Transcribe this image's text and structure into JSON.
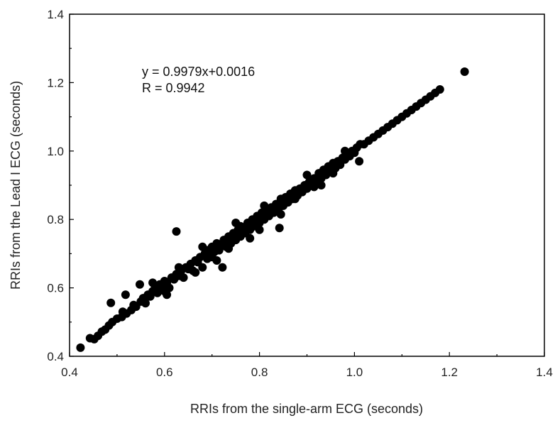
{
  "chart_data": {
    "type": "scatter",
    "title": "",
    "xlabel": "RRIs from the single-arm ECG (seconds)",
    "ylabel": "RRIs from the Lead I ECG (seconds)",
    "xlim": [
      0.4,
      1.4
    ],
    "ylim": [
      0.4,
      1.4
    ],
    "xticks": [
      "0.4",
      "0.6",
      "0.8",
      "1.0",
      "1.2",
      "1.4"
    ],
    "yticks": [
      "0.4",
      "0.6",
      "0.8",
      "1.0",
      "1.2",
      "1.4"
    ],
    "grid": false,
    "annotations": [
      "y = 0.9979x+0.0016",
      "R = 0.9942"
    ],
    "regression": {
      "slope": 0.9979,
      "intercept": 0.0016,
      "r": 0.9942
    },
    "marker_color": "#000000",
    "series": [
      {
        "points": [
          [
            0.423,
            0.425
          ],
          [
            0.443,
            0.453
          ],
          [
            0.452,
            0.45
          ],
          [
            0.46,
            0.46
          ],
          [
            0.468,
            0.472
          ],
          [
            0.475,
            0.478
          ],
          [
            0.483,
            0.49
          ],
          [
            0.49,
            0.5
          ],
          [
            0.487,
            0.556
          ],
          [
            0.5,
            0.51
          ],
          [
            0.51,
            0.515
          ],
          [
            0.512,
            0.53
          ],
          [
            0.52,
            0.525
          ],
          [
            0.518,
            0.58
          ],
          [
            0.53,
            0.535
          ],
          [
            0.535,
            0.55
          ],
          [
            0.54,
            0.545
          ],
          [
            0.548,
            0.61
          ],
          [
            0.55,
            0.56
          ],
          [
            0.555,
            0.57
          ],
          [
            0.56,
            0.555
          ],
          [
            0.565,
            0.58
          ],
          [
            0.57,
            0.575
          ],
          [
            0.575,
            0.59
          ],
          [
            0.58,
            0.6
          ],
          [
            0.585,
            0.585
          ],
          [
            0.59,
            0.61
          ],
          [
            0.595,
            0.6
          ],
          [
            0.6,
            0.59
          ],
          [
            0.6,
            0.62
          ],
          [
            0.605,
            0.615
          ],
          [
            0.61,
            0.6
          ],
          [
            0.615,
            0.63
          ],
          [
            0.62,
            0.625
          ],
          [
            0.625,
            0.64
          ],
          [
            0.625,
            0.765
          ],
          [
            0.63,
            0.635
          ],
          [
            0.635,
            0.65
          ],
          [
            0.64,
            0.63
          ],
          [
            0.645,
            0.66
          ],
          [
            0.65,
            0.655
          ],
          [
            0.655,
            0.67
          ],
          [
            0.66,
            0.65
          ],
          [
            0.665,
            0.68
          ],
          [
            0.67,
            0.675
          ],
          [
            0.675,
            0.69
          ],
          [
            0.68,
            0.66
          ],
          [
            0.685,
            0.7
          ],
          [
            0.69,
            0.685
          ],
          [
            0.695,
            0.71
          ],
          [
            0.7,
            0.69
          ],
          [
            0.7,
            0.72
          ],
          [
            0.705,
            0.705
          ],
          [
            0.71,
            0.73
          ],
          [
            0.715,
            0.71
          ],
          [
            0.72,
            0.725
          ],
          [
            0.722,
            0.66
          ],
          [
            0.725,
            0.74
          ],
          [
            0.73,
            0.72
          ],
          [
            0.735,
            0.75
          ],
          [
            0.74,
            0.73
          ],
          [
            0.745,
            0.76
          ],
          [
            0.75,
            0.74
          ],
          [
            0.755,
            0.77
          ],
          [
            0.76,
            0.75
          ],
          [
            0.765,
            0.775
          ],
          [
            0.77,
            0.76
          ],
          [
            0.775,
            0.79
          ],
          [
            0.78,
            0.77
          ],
          [
            0.785,
            0.8
          ],
          [
            0.79,
            0.78
          ],
          [
            0.795,
            0.81
          ],
          [
            0.8,
            0.79
          ],
          [
            0.805,
            0.82
          ],
          [
            0.81,
            0.8
          ],
          [
            0.815,
            0.83
          ],
          [
            0.82,
            0.81
          ],
          [
            0.825,
            0.835
          ],
          [
            0.83,
            0.82
          ],
          [
            0.835,
            0.845
          ],
          [
            0.84,
            0.83
          ],
          [
            0.842,
            0.775
          ],
          [
            0.845,
            0.86
          ],
          [
            0.85,
            0.84
          ],
          [
            0.855,
            0.865
          ],
          [
            0.86,
            0.85
          ],
          [
            0.865,
            0.875
          ],
          [
            0.87,
            0.86
          ],
          [
            0.875,
            0.885
          ],
          [
            0.88,
            0.87
          ],
          [
            0.885,
            0.89
          ],
          [
            0.89,
            0.88
          ],
          [
            0.895,
            0.9
          ],
          [
            0.9,
            0.89
          ],
          [
            0.905,
            0.91
          ],
          [
            0.91,
            0.9
          ],
          [
            0.915,
            0.92
          ],
          [
            0.92,
            0.91
          ],
          [
            0.925,
            0.935
          ],
          [
            0.93,
            0.92
          ],
          [
            0.935,
            0.945
          ],
          [
            0.94,
            0.93
          ],
          [
            0.945,
            0.955
          ],
          [
            0.95,
            0.94
          ],
          [
            0.955,
            0.965
          ],
          [
            0.96,
            0.95
          ],
          [
            0.965,
            0.97
          ],
          [
            0.97,
            0.96
          ],
          [
            0.975,
            0.98
          ],
          [
            0.98,
            0.975
          ],
          [
            0.985,
            0.99
          ],
          [
            0.99,
            0.985
          ],
          [
            0.995,
            1.0
          ],
          [
            1.0,
            0.995
          ],
          [
            1.005,
            1.01
          ],
          [
            1.01,
            0.97
          ],
          [
            1.012,
            1.02
          ],
          [
            1.02,
            1.02
          ],
          [
            1.03,
            1.03
          ],
          [
            1.04,
            1.04
          ],
          [
            1.05,
            1.05
          ],
          [
            1.06,
            1.06
          ],
          [
            1.07,
            1.07
          ],
          [
            1.08,
            1.08
          ],
          [
            1.09,
            1.09
          ],
          [
            1.1,
            1.1
          ],
          [
            1.11,
            1.11
          ],
          [
            1.12,
            1.12
          ],
          [
            1.13,
            1.13
          ],
          [
            1.14,
            1.14
          ],
          [
            1.15,
            1.15
          ],
          [
            1.16,
            1.16
          ],
          [
            1.17,
            1.17
          ],
          [
            1.18,
            1.18
          ],
          [
            1.232,
            1.232
          ],
          [
            0.575,
            0.615
          ],
          [
            0.605,
            0.58
          ],
          [
            0.68,
            0.72
          ],
          [
            0.71,
            0.68
          ],
          [
            0.75,
            0.79
          ],
          [
            0.78,
            0.745
          ],
          [
            0.81,
            0.84
          ],
          [
            0.845,
            0.815
          ],
          [
            0.9,
            0.93
          ],
          [
            0.93,
            0.9
          ],
          [
            0.665,
            0.645
          ],
          [
            0.69,
            0.71
          ],
          [
            0.735,
            0.715
          ],
          [
            0.76,
            0.78
          ],
          [
            0.8,
            0.77
          ],
          [
            0.875,
            0.86
          ],
          [
            0.915,
            0.895
          ],
          [
            0.955,
            0.935
          ],
          [
            0.98,
            1.0
          ],
          [
            0.63,
            0.66
          ]
        ]
      }
    ]
  }
}
